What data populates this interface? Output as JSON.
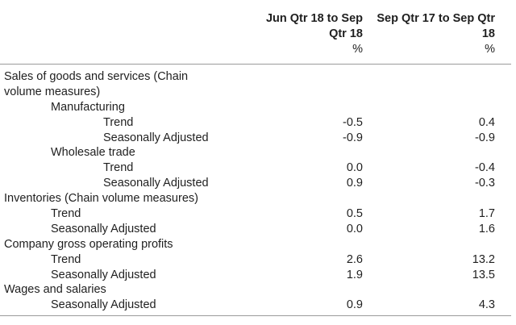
{
  "header": {
    "col1_line1": "Jun Qtr 18 to Sep",
    "col1_line2": "Qtr 18",
    "col1_unit": "%",
    "col2_line1": "Sep Qtr 17 to Sep Qtr",
    "col2_line2": "18",
    "col2_unit": "%"
  },
  "rows": [
    {
      "label": "Sales of goods and services (Chain",
      "v1": "",
      "v2": ""
    },
    {
      "label": "volume measures)",
      "v1": "",
      "v2": ""
    },
    {
      "label": "Manufacturing",
      "v1": "",
      "v2": ""
    },
    {
      "label": "Trend",
      "v1": "-0.5",
      "v2": "0.4"
    },
    {
      "label": "Seasonally Adjusted",
      "v1": "-0.9",
      "v2": "-0.9"
    },
    {
      "label": "Wholesale trade",
      "v1": "",
      "v2": ""
    },
    {
      "label": "Trend",
      "v1": "0.0",
      "v2": "-0.4"
    },
    {
      "label": "Seasonally Adjusted",
      "v1": "0.9",
      "v2": "-0.3"
    },
    {
      "label": "Inventories (Chain volume measures)",
      "v1": "",
      "v2": ""
    },
    {
      "label": "Trend",
      "v1": "0.5",
      "v2": "1.7"
    },
    {
      "label": "Seasonally Adjusted",
      "v1": "0.0",
      "v2": "1.6"
    },
    {
      "label": "Company gross operating profits",
      "v1": "",
      "v2": ""
    },
    {
      "label": "Trend",
      "v1": "2.6",
      "v2": "13.2"
    },
    {
      "label": "Seasonally Adjusted",
      "v1": "1.9",
      "v2": "13.5"
    },
    {
      "label": "Wages and salaries",
      "v1": "",
      "v2": ""
    },
    {
      "label": "Seasonally Adjusted",
      "v1": "0.9",
      "v2": "4.3"
    }
  ]
}
